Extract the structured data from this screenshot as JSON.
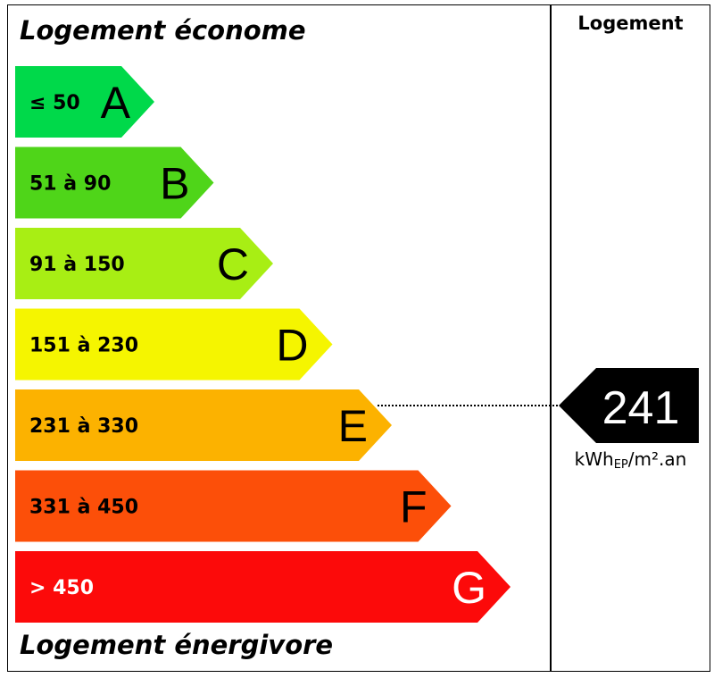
{
  "header": {
    "top_caption": "Logement économe",
    "bottom_caption": "Logement énergivore",
    "column_title": "Logement"
  },
  "chart_data": {
    "type": "bar",
    "categories": [
      "A",
      "B",
      "C",
      "D",
      "E",
      "F",
      "G"
    ],
    "ranges": [
      "≤ 50",
      "51 à 90",
      "91 à 150",
      "151 à 230",
      "231 à 330",
      "331 à 450",
      "> 450"
    ],
    "colors": [
      "#00d94a",
      "#4fd519",
      "#a8ee14",
      "#f5f500",
      "#fcb200",
      "#fc4f09",
      "#fc0a0a"
    ],
    "range_colors": [
      "#000000",
      "#000000",
      "#000000",
      "#000000",
      "#000000",
      "#000000",
      "#ffffff"
    ],
    "letter_colors": [
      "#000000",
      "#000000",
      "#000000",
      "#000000",
      "#000000",
      "#000000",
      "#ffffff"
    ],
    "value": 241,
    "value_class": "E",
    "unit": {
      "main": "kWh",
      "sub": "EP",
      "tail": "/m².an"
    },
    "indicator_color": "#000000"
  }
}
